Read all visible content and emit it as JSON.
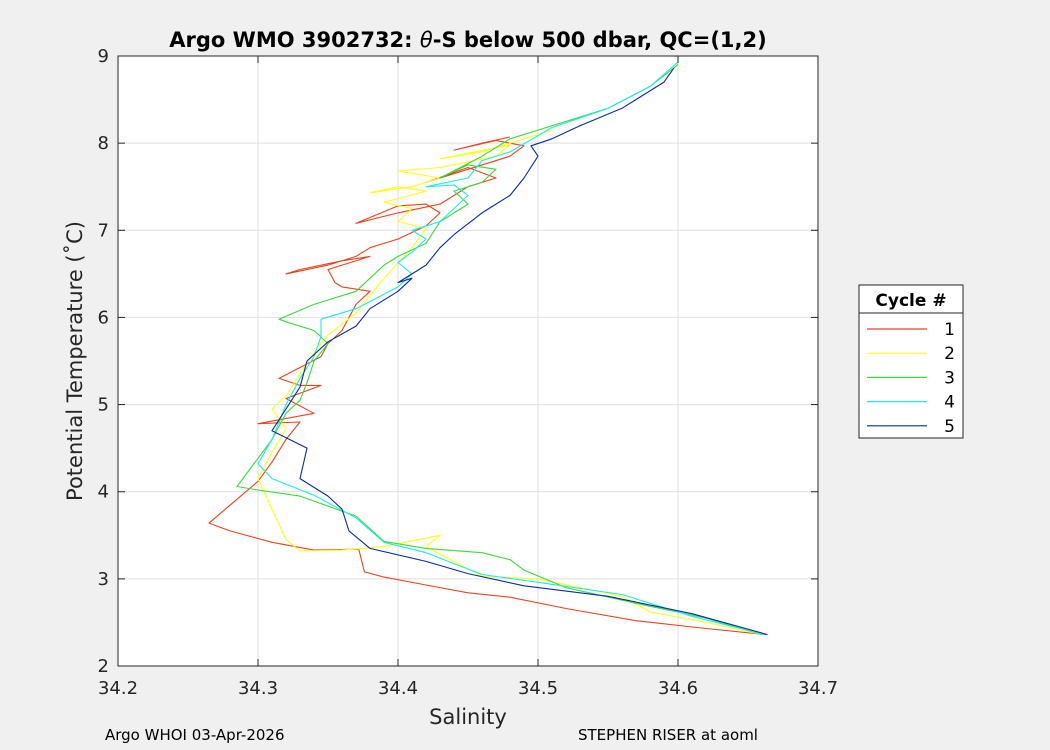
{
  "chart_data": {
    "type": "line",
    "title_prefix": "Argo WMO 3902732: ",
    "title_theta": "θ",
    "title_suffix": "-S below 500 dbar,  QC=(1,2)",
    "xlabel": "Salinity",
    "ylabel": "Potential Temperature (˚C)",
    "xlim": [
      34.2,
      34.7
    ],
    "ylim": [
      2,
      9
    ],
    "xticks": [
      34.2,
      34.3,
      34.4,
      34.5,
      34.6,
      34.7
    ],
    "xtick_labels": [
      "34.2",
      "34.3",
      "34.4",
      "34.5",
      "34.6",
      "34.7"
    ],
    "yticks": [
      2,
      3,
      4,
      5,
      6,
      7,
      8,
      9
    ],
    "ytick_labels": [
      "2",
      "3",
      "4",
      "5",
      "6",
      "7",
      "8",
      "9"
    ],
    "grid": true,
    "legend_title": "Cycle #",
    "legend_position": "outside-right",
    "series": [
      {
        "name": "1",
        "color": "#e8431f",
        "points": [
          [
            34.663,
            2.36
          ],
          [
            34.62,
            2.43
          ],
          [
            34.57,
            2.52
          ],
          [
            34.52,
            2.66
          ],
          [
            34.48,
            2.79
          ],
          [
            34.45,
            2.84
          ],
          [
            34.42,
            2.93
          ],
          [
            34.39,
            3.02
          ],
          [
            34.376,
            3.08
          ],
          [
            34.372,
            3.34
          ],
          [
            34.34,
            3.33
          ],
          [
            34.31,
            3.42
          ],
          [
            34.28,
            3.55
          ],
          [
            34.265,
            3.64
          ],
          [
            34.3,
            4.12
          ],
          [
            34.31,
            4.34
          ],
          [
            34.32,
            4.6
          ],
          [
            34.33,
            4.8
          ],
          [
            34.3,
            4.78
          ],
          [
            34.34,
            4.9
          ],
          [
            34.32,
            5.07
          ],
          [
            34.345,
            5.22
          ],
          [
            34.33,
            5.22
          ],
          [
            34.315,
            5.3
          ],
          [
            34.345,
            5.55
          ],
          [
            34.35,
            5.7
          ],
          [
            34.36,
            5.85
          ],
          [
            34.37,
            6.15
          ],
          [
            34.38,
            6.3
          ],
          [
            34.36,
            6.35
          ],
          [
            34.355,
            6.4
          ],
          [
            34.35,
            6.55
          ],
          [
            34.38,
            6.7
          ],
          [
            34.36,
            6.65
          ],
          [
            34.33,
            6.55
          ],
          [
            34.32,
            6.5
          ],
          [
            34.35,
            6.6
          ],
          [
            34.37,
            6.7
          ],
          [
            34.38,
            6.8
          ],
          [
            34.4,
            6.9
          ],
          [
            34.42,
            7.05
          ],
          [
            34.43,
            7.2
          ],
          [
            34.42,
            7.3
          ],
          [
            34.4,
            7.28
          ],
          [
            34.37,
            7.08
          ],
          [
            34.4,
            7.2
          ],
          [
            34.43,
            7.3
          ],
          [
            34.45,
            7.5
          ],
          [
            34.47,
            7.6
          ],
          [
            34.45,
            7.72
          ],
          [
            34.42,
            7.55
          ],
          [
            34.45,
            7.7
          ],
          [
            34.48,
            7.85
          ],
          [
            34.49,
            7.97
          ],
          [
            34.47,
            8.03
          ],
          [
            34.44,
            7.92
          ],
          [
            34.46,
            8.0
          ],
          [
            34.48,
            8.07
          ]
        ]
      },
      {
        "name": "2",
        "color": "#ffff19",
        "points": [
          [
            34.66,
            2.36
          ],
          [
            34.62,
            2.5
          ],
          [
            34.58,
            2.62
          ],
          [
            34.56,
            2.8
          ],
          [
            34.5,
            3.0
          ],
          [
            34.46,
            3.03
          ],
          [
            34.42,
            3.37
          ],
          [
            34.43,
            3.5
          ],
          [
            34.39,
            3.37
          ],
          [
            34.36,
            3.33
          ],
          [
            34.33,
            3.32
          ],
          [
            34.32,
            3.45
          ],
          [
            34.31,
            3.8
          ],
          [
            34.3,
            4.15
          ],
          [
            34.31,
            4.45
          ],
          [
            34.32,
            4.72
          ],
          [
            34.31,
            4.95
          ],
          [
            34.32,
            5.1
          ],
          [
            34.33,
            5.35
          ],
          [
            34.34,
            5.6
          ],
          [
            34.35,
            5.8
          ],
          [
            34.37,
            6.05
          ],
          [
            34.38,
            6.25
          ],
          [
            34.39,
            6.45
          ],
          [
            34.41,
            6.8
          ],
          [
            34.42,
            7.02
          ],
          [
            34.4,
            7.1
          ],
          [
            34.41,
            7.25
          ],
          [
            34.39,
            7.32
          ],
          [
            34.42,
            7.45
          ],
          [
            34.4,
            7.5
          ],
          [
            34.38,
            7.43
          ],
          [
            34.41,
            7.5
          ],
          [
            34.43,
            7.6
          ],
          [
            34.4,
            7.68
          ],
          [
            34.43,
            7.72
          ],
          [
            34.47,
            7.85
          ],
          [
            34.48,
            7.98
          ],
          [
            34.43,
            7.82
          ],
          [
            34.46,
            7.9
          ],
          [
            34.49,
            8.05
          ],
          [
            34.51,
            8.15
          ]
        ]
      },
      {
        "name": "3",
        "color": "#3cd83c",
        "points": [
          [
            34.66,
            2.36
          ],
          [
            34.62,
            2.55
          ],
          [
            34.57,
            2.72
          ],
          [
            34.52,
            2.9
          ],
          [
            34.49,
            3.1
          ],
          [
            34.48,
            3.22
          ],
          [
            34.46,
            3.3
          ],
          [
            34.42,
            3.35
          ],
          [
            34.39,
            3.43
          ],
          [
            34.37,
            3.72
          ],
          [
            34.33,
            3.95
          ],
          [
            34.3,
            4.02
          ],
          [
            34.285,
            4.06
          ],
          [
            34.31,
            4.6
          ],
          [
            34.32,
            4.9
          ],
          [
            34.33,
            5.05
          ],
          [
            34.335,
            5.25
          ],
          [
            34.34,
            5.5
          ],
          [
            34.35,
            5.7
          ],
          [
            34.34,
            5.85
          ],
          [
            34.32,
            5.95
          ],
          [
            34.315,
            5.98
          ],
          [
            34.34,
            6.15
          ],
          [
            34.37,
            6.3
          ],
          [
            34.38,
            6.45
          ],
          [
            34.39,
            6.6
          ],
          [
            34.4,
            6.7
          ],
          [
            34.42,
            6.85
          ],
          [
            34.43,
            7.1
          ],
          [
            34.45,
            7.3
          ],
          [
            34.44,
            7.45
          ],
          [
            34.46,
            7.55
          ],
          [
            34.47,
            7.7
          ],
          [
            34.45,
            7.75
          ],
          [
            34.43,
            7.6
          ],
          [
            34.46,
            7.85
          ],
          [
            34.48,
            8.05
          ],
          [
            34.5,
            8.15
          ],
          [
            34.52,
            8.25
          ],
          [
            34.55,
            8.4
          ],
          [
            34.58,
            8.65
          ],
          [
            34.6,
            8.9
          ]
        ]
      },
      {
        "name": "4",
        "color": "#19ecec",
        "points": [
          [
            34.662,
            2.36
          ],
          [
            34.61,
            2.57
          ],
          [
            34.56,
            2.82
          ],
          [
            34.5,
            2.96
          ],
          [
            34.46,
            3.05
          ],
          [
            34.42,
            3.3
          ],
          [
            34.39,
            3.42
          ],
          [
            34.37,
            3.7
          ],
          [
            34.34,
            3.96
          ],
          [
            34.31,
            4.15
          ],
          [
            34.3,
            4.32
          ],
          [
            34.31,
            4.6
          ],
          [
            34.315,
            4.8
          ],
          [
            34.32,
            5.0
          ],
          [
            34.33,
            5.3
          ],
          [
            34.34,
            5.55
          ],
          [
            34.345,
            5.78
          ],
          [
            34.345,
            5.98
          ],
          [
            34.37,
            6.1
          ],
          [
            34.4,
            6.35
          ],
          [
            34.41,
            6.5
          ],
          [
            34.4,
            6.63
          ],
          [
            34.41,
            6.75
          ],
          [
            34.42,
            6.9
          ],
          [
            34.41,
            7.0
          ],
          [
            34.43,
            7.1
          ],
          [
            34.44,
            7.25
          ],
          [
            34.45,
            7.4
          ],
          [
            34.44,
            7.52
          ],
          [
            34.42,
            7.5
          ],
          [
            34.45,
            7.6
          ],
          [
            34.46,
            7.8
          ],
          [
            34.48,
            7.9
          ],
          [
            34.51,
            8.18
          ],
          [
            34.55,
            8.4
          ],
          [
            34.58,
            8.65
          ],
          [
            34.6,
            8.93
          ]
        ]
      },
      {
        "name": "5",
        "color": "#0a2c9c",
        "points": [
          [
            34.664,
            2.36
          ],
          [
            34.61,
            2.6
          ],
          [
            34.55,
            2.8
          ],
          [
            34.49,
            2.92
          ],
          [
            34.45,
            3.06
          ],
          [
            34.42,
            3.2
          ],
          [
            34.38,
            3.35
          ],
          [
            34.365,
            3.55
          ],
          [
            34.36,
            3.8
          ],
          [
            34.35,
            3.95
          ],
          [
            34.33,
            4.15
          ],
          [
            34.335,
            4.5
          ],
          [
            34.31,
            4.7
          ],
          [
            34.32,
            4.95
          ],
          [
            34.33,
            5.2
          ],
          [
            34.335,
            5.5
          ],
          [
            34.35,
            5.72
          ],
          [
            34.37,
            5.9
          ],
          [
            34.38,
            6.1
          ],
          [
            34.4,
            6.3
          ],
          [
            34.41,
            6.45
          ],
          [
            34.4,
            6.4
          ],
          [
            34.42,
            6.6
          ],
          [
            34.43,
            6.8
          ],
          [
            34.44,
            6.95
          ],
          [
            34.46,
            7.2
          ],
          [
            34.48,
            7.4
          ],
          [
            34.49,
            7.6
          ],
          [
            34.5,
            7.85
          ],
          [
            34.495,
            7.97
          ],
          [
            34.51,
            8.05
          ],
          [
            34.53,
            8.2
          ],
          [
            34.56,
            8.4
          ],
          [
            34.59,
            8.7
          ],
          [
            34.597,
            8.86
          ]
        ]
      }
    ]
  },
  "footer": {
    "left": "Argo WHOI 03-Apr-2026",
    "right": "STEPHEN RISER at aoml"
  }
}
